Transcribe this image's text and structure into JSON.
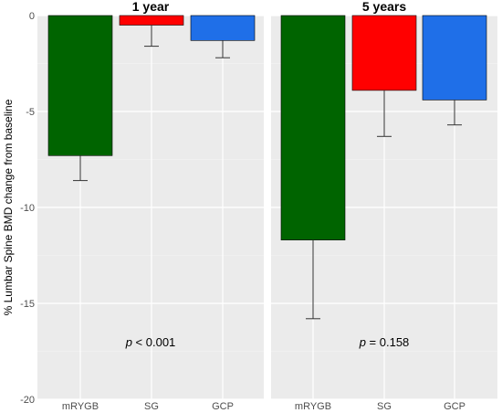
{
  "chart_data": {
    "type": "bar",
    "ylabel": "% Lumbar Spine BMD change from baseline",
    "ylim": [
      -20,
      0
    ],
    "yticks": [
      "-20",
      "-15",
      "-10",
      "-5",
      "0"
    ],
    "categories": [
      "mRYGB",
      "SG",
      "GCP"
    ],
    "colors": {
      "mRYGB": "#006400",
      "SG": "#ff0000",
      "GCP": "#1f6fe8"
    },
    "grid": true,
    "panels": [
      {
        "title": "1 year",
        "values": [
          -7.3,
          -0.5,
          -1.3
        ],
        "error_lower": [
          -8.6,
          -1.6,
          -2.2
        ],
        "annotation": {
          "p_symbol": "p",
          "p_text": " < 0.001"
        }
      },
      {
        "title": "5 years",
        "values": [
          -11.7,
          -3.9,
          -4.4
        ],
        "error_lower": [
          -15.8,
          -6.3,
          -5.7
        ],
        "annotation": {
          "p_symbol": "p",
          "p_text": " = 0.158"
        }
      }
    ]
  }
}
